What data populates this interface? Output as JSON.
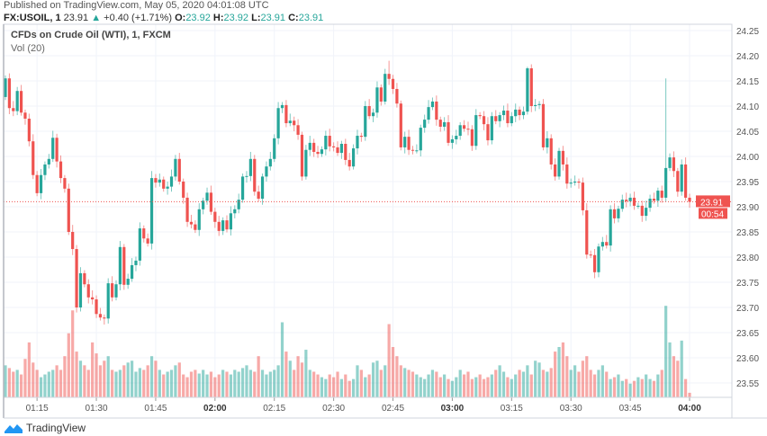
{
  "header": {
    "published": "Published on TradingView.com, May 05, 2020 04:01:08 UTC",
    "symbol": "FX:USOIL, 1",
    "last": "23.91",
    "change": "+0.40 (+1.71%)",
    "o_label": "O:",
    "o": "23.92",
    "h_label": "H:",
    "h": "23.92",
    "l_label": "L:",
    "l": "23.91",
    "c_label": "C:",
    "c": "23.91"
  },
  "legend": {
    "title": "CFDs on Crude Oil (WTI), 1, FXCM",
    "volume": "Vol (20)"
  },
  "price_label": {
    "value": "23.91",
    "countdown": "00:54"
  },
  "logo": "TradingView",
  "colors": {
    "up": "#26a69a",
    "down": "#ef5350",
    "grid": "#f0f3fa",
    "axis": "#b2b5be"
  },
  "chart_data": {
    "type": "candlestick",
    "interval_minutes": 1,
    "ylim": [
      23.525,
      24.262
    ],
    "y_ticks": [
      "24.25",
      "24.20",
      "24.15",
      "24.10",
      "24.05",
      "24.00",
      "23.95",
      "23.90",
      "23.85",
      "23.80",
      "23.75",
      "23.70",
      "23.65",
      "23.60",
      "23.55"
    ],
    "x_ticks": [
      {
        "label": "01:15",
        "bold": false
      },
      {
        "label": "01:30",
        "bold": false
      },
      {
        "label": "01:45",
        "bold": false
      },
      {
        "label": "02:00",
        "bold": true
      },
      {
        "label": "02:15",
        "bold": false
      },
      {
        "label": "02:30",
        "bold": false
      },
      {
        "label": "02:45",
        "bold": false
      },
      {
        "label": "03:00",
        "bold": true
      },
      {
        "label": "03:15",
        "bold": false
      },
      {
        "label": "03:30",
        "bold": false
      },
      {
        "label": "03:45",
        "bold": false
      },
      {
        "label": "04:00",
        "bold": true
      }
    ],
    "last_candle_time": "04:00",
    "first_open": 24.118,
    "closes": [
      24.155,
      24.096,
      24.09,
      24.13,
      24.087,
      24.075,
      24.03,
      23.963,
      23.927,
      23.963,
      23.984,
      23.995,
      24.037,
      23.99,
      23.957,
      23.936,
      23.85,
      23.816,
      23.7,
      23.768,
      23.746,
      23.72,
      23.716,
      23.687,
      23.68,
      23.678,
      23.748,
      23.72,
      23.746,
      23.82,
      23.745,
      23.757,
      23.784,
      23.793,
      23.857,
      23.837,
      23.827,
      23.957,
      23.948,
      23.954,
      23.936,
      23.94,
      23.96,
      23.995,
      23.95,
      23.918,
      23.87,
      23.865,
      23.854,
      23.895,
      23.912,
      23.928,
      23.89,
      23.87,
      23.852,
      23.873,
      23.855,
      23.887,
      23.895,
      23.914,
      23.96,
      23.961,
      23.995,
      23.93,
      23.916,
      23.96,
      23.98,
      23.995,
      24.036,
      24.096,
      24.102,
      24.066,
      24.071,
      24.062,
      24.043,
      23.96,
      24.013,
      24.027,
      24.009,
      24.005,
      24.014,
      24.041,
      24.02,
      24.018,
      24.007,
      24.025,
      23.993,
      23.98,
      24.016,
      24.041,
      24.039,
      24.1,
      24.08,
      24.087,
      24.137,
      24.109,
      24.164,
      24.154,
      24.134,
      24.105,
      24.018,
      24.039,
      24.013,
      24.012,
      24.012,
      24.057,
      24.073,
      24.098,
      24.109,
      24.073,
      24.059,
      24.068,
      24.027,
      24.034,
      24.041,
      24.062,
      24.055,
      24.054,
      24.021,
      24.082,
      24.08,
      24.064,
      24.032,
      24.08,
      24.07,
      24.082,
      24.091,
      24.066,
      24.08,
      24.093,
      24.082,
      24.089,
      24.175,
      24.1,
      24.102,
      24.104,
      24.018,
      24.036,
      23.984,
      23.96,
      24.011,
      23.984,
      23.946,
      23.948,
      23.95,
      23.948,
      23.893,
      23.805,
      23.804,
      23.77,
      23.821,
      23.83,
      23.823,
      23.895,
      23.877,
      23.896,
      23.914,
      23.911,
      23.918,
      23.902,
      23.902,
      23.882,
      23.898,
      23.916,
      23.912,
      23.932,
      23.918,
      23.977,
      23.998,
      23.971,
      23.93,
      23.984,
      23.918,
      23.91
    ],
    "volumes": [
      35,
      32,
      28,
      30,
      25,
      42,
      60,
      38,
      30,
      22,
      25,
      28,
      30,
      35,
      30,
      45,
      70,
      95,
      50,
      40,
      35,
      30,
      60,
      48,
      35,
      40,
      45,
      30,
      28,
      30,
      35,
      38,
      40,
      28,
      32,
      30,
      35,
      45,
      40,
      30,
      25,
      28,
      30,
      35,
      38,
      25,
      22,
      28,
      30,
      26,
      30,
      25,
      28,
      22,
      25,
      30,
      28,
      25,
      30,
      28,
      32,
      35,
      30,
      28,
      45,
      30,
      25,
      28,
      30,
      35,
      82,
      50,
      40,
      30,
      45,
      38,
      52,
      30,
      28,
      25,
      22,
      20,
      25,
      22,
      28,
      20,
      25,
      18,
      20,
      35,
      30,
      22,
      25,
      38,
      40,
      30,
      35,
      80,
      55,
      45,
      35,
      32,
      30,
      28,
      25,
      22,
      20,
      25,
      30,
      28,
      22,
      25,
      20,
      18,
      22,
      30,
      25,
      28,
      20,
      22,
      25,
      20,
      22,
      25,
      30,
      35,
      28,
      22,
      20,
      25,
      30,
      28,
      35,
      25,
      40,
      38,
      30,
      28,
      32,
      50,
      55,
      60,
      45,
      30,
      35,
      28,
      40,
      45,
      30,
      25,
      30,
      35,
      28,
      20,
      22,
      25,
      18,
      20,
      15,
      18,
      22,
      20,
      25,
      20,
      18,
      25,
      30,
      100,
      60,
      45,
      40,
      62,
      20,
      5
    ],
    "notable_highs": [
      {
        "index": 167,
        "high": 24.155
      },
      {
        "index": 132,
        "high": 24.178
      },
      {
        "index": 97,
        "high": 24.19
      }
    ],
    "volume_max": 110
  }
}
